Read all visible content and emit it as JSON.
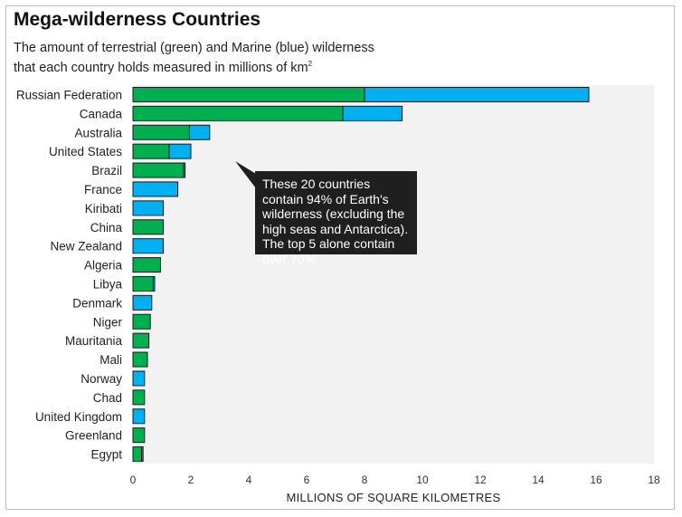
{
  "chart_data": {
    "type": "bar",
    "orientation": "horizontal",
    "stacked": true,
    "title": "Mega-wilderness Countries",
    "subtitle_line1": "The amount of terrestrial (green) and Marine (blue) wilderness",
    "subtitle_line2": "that each country holds measured in millions of km",
    "subtitle_sup": "2",
    "xlabel": "MILLIONS OF SQUARE KILOMETRES",
    "xlim": [
      0,
      18
    ],
    "xticks": [
      "0",
      "2",
      "4",
      "6",
      "8",
      "10",
      "12",
      "14",
      "16",
      "18"
    ],
    "categories": [
      "Russian Federation",
      "Canada",
      "Australia",
      "United States",
      "Brazil",
      "France",
      "Kiribati",
      "China",
      "New Zealand",
      "Algeria",
      "Libya",
      "Denmark",
      "Niger",
      "Mauritania",
      "Mali",
      "Norway",
      "Chad",
      "United Kingdom",
      "Greenland",
      "Egypt"
    ],
    "series": [
      {
        "color": "#00b050",
        "values": [
          8.0,
          7.25,
          1.95,
          1.25,
          1.75,
          0,
          0,
          1.05,
          0,
          0.95,
          0.7,
          0,
          0.6,
          0.55,
          0.5,
          0,
          0.4,
          0,
          0.4,
          0.3
        ]
      },
      {
        "color": "#00b0f0",
        "values": [
          7.75,
          2.05,
          0.7,
          0.75,
          0.05,
          1.55,
          1.05,
          0,
          1.05,
          0,
          0.05,
          0.65,
          0,
          0,
          0,
          0.4,
          0,
          0.4,
          0,
          0.05
        ]
      }
    ],
    "annotation": "These 20 countries contain 94% of Earth's wilderness (excluding the high seas and Antarctica). The top 5 alone contain over 70%.",
    "colors": {
      "terrestrial": "#00b050",
      "marine": "#00b0f0",
      "plot_background": "#f2f2f2",
      "callout_background": "#1f1f1f"
    }
  }
}
